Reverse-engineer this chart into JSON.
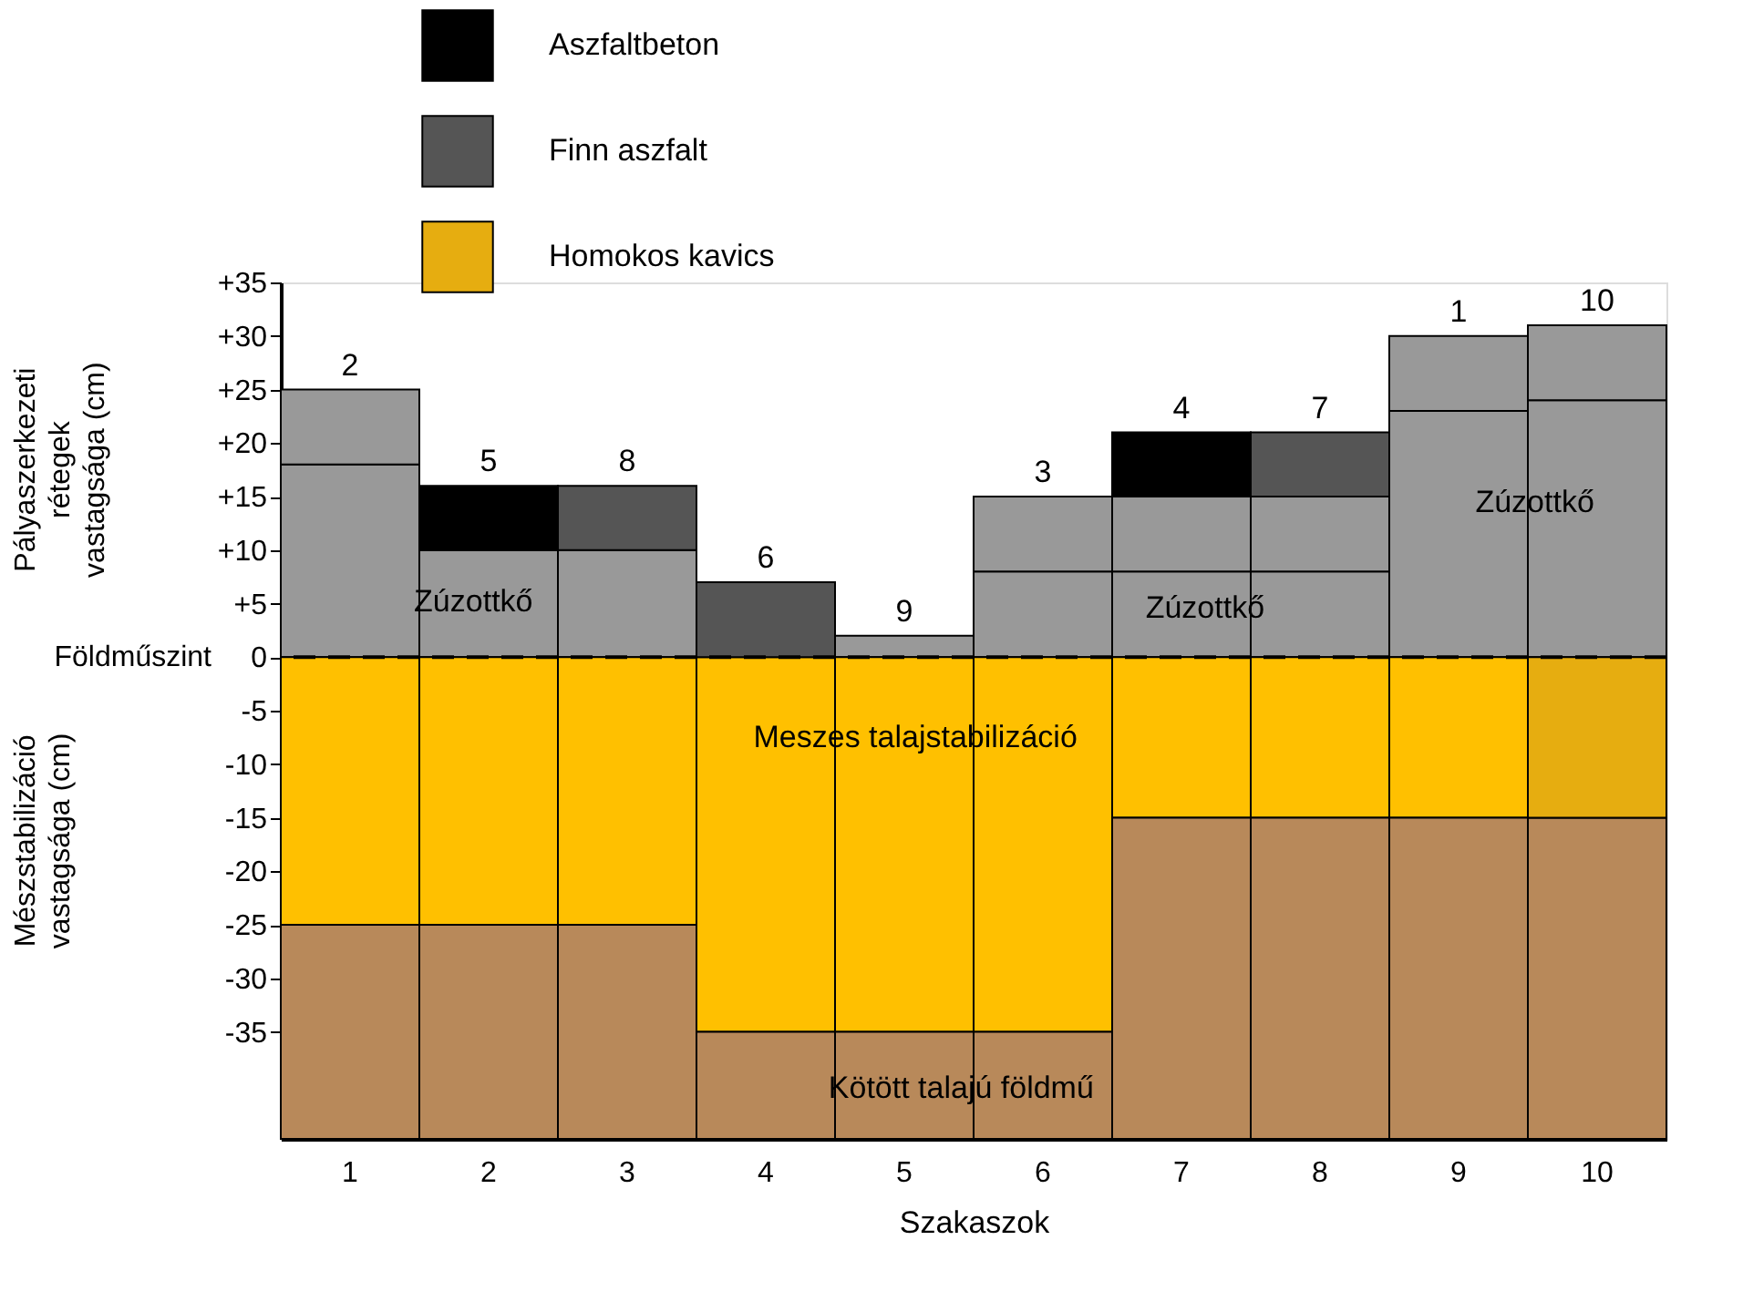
{
  "chart_data": {
    "type": "bar",
    "categories": [
      "1",
      "2",
      "3",
      "4",
      "5",
      "6",
      "7",
      "8",
      "9",
      "10"
    ],
    "xlabel": "Szakaszok",
    "ylabel": "Pályaszerkezeti rétegek vastagsága (cm)",
    "ylim": [
      -45,
      35
    ],
    "yticks": [
      {
        "value": 35,
        "label": "+35"
      },
      {
        "value": 30,
        "label": "+30"
      },
      {
        "value": 25,
        "label": "+25"
      },
      {
        "value": 20,
        "label": "+20"
      },
      {
        "value": 15,
        "label": "+15"
      },
      {
        "value": 10,
        "label": "+10"
      },
      {
        "value": 5,
        "label": "+5"
      },
      0,
      -5,
      -10,
      -15,
      -20,
      -25,
      -30,
      -35
    ],
    "grid": false,
    "legend": "top",
    "series": [
      {
        "color": "#999999",
        "values": [
          18,
          10,
          10,
          null,
          2,
          8,
          8,
          8,
          23,
          24
        ],
        "base": [
          0,
          0,
          0,
          null,
          0,
          0,
          0,
          0,
          0,
          0
        ]
      },
      {
        "color": "#999999",
        "values": [
          7,
          null,
          null,
          null,
          null,
          7,
          7,
          7,
          7,
          7
        ],
        "base": [
          18,
          null,
          null,
          null,
          null,
          8,
          8,
          8,
          23,
          24
        ]
      },
      {
        "name": "Aszfaltbeton",
        "color": "#000000",
        "values": [
          null,
          6,
          null,
          null,
          null,
          null,
          6,
          null,
          null,
          null
        ],
        "base": [
          null,
          10,
          null,
          null,
          null,
          null,
          15,
          null,
          null,
          null
        ]
      },
      {
        "name": "Finn aszfalt",
        "color": "#555555",
        "values": [
          null,
          null,
          6,
          7,
          null,
          null,
          null,
          6,
          null,
          null
        ],
        "base": [
          null,
          null,
          10,
          0,
          null,
          null,
          null,
          15,
          null,
          null
        ]
      },
      {
        "color": "#ffc000",
        "values": [
          -25,
          -25,
          -25,
          -35,
          -35,
          -35,
          -15,
          -15,
          -15,
          null
        ],
        "base": [
          0,
          0,
          0,
          0,
          0,
          0,
          0,
          0,
          0,
          null
        ]
      },
      {
        "name": "Homokos kavics",
        "color": "#e6ad10",
        "values": [
          null,
          null,
          null,
          null,
          null,
          null,
          null,
          null,
          null,
          -15
        ],
        "base": [
          null,
          null,
          null,
          null,
          null,
          null,
          null,
          null,
          null,
          0
        ]
      },
      {
        "color": "#b8895a",
        "values": [
          -20,
          -20,
          -20,
          -10,
          -10,
          -10,
          -30,
          -30,
          -30,
          -30
        ],
        "base": [
          -25,
          -25,
          -25,
          -35,
          -35,
          -35,
          -15,
          -15,
          -15,
          -15
        ]
      }
    ],
    "ref_lines": [
      {
        "axis": "y",
        "value": 0,
        "label": "Földműszint",
        "line_style": "dashed"
      }
    ],
    "annotations": [
      {
        "text": "2",
        "x": "1",
        "y": 25
      },
      {
        "text": "5",
        "x": "2",
        "y": 16
      },
      {
        "text": "8",
        "x": "3",
        "y": 16
      },
      {
        "text": "6",
        "x": "4",
        "y": 7
      },
      {
        "text": "9",
        "x": "5",
        "y": 2
      },
      {
        "text": "3",
        "x": "6",
        "y": 15
      },
      {
        "text": "4",
        "x": "7",
        "y": 21
      },
      {
        "text": "7",
        "x": "8",
        "y": 21
      },
      {
        "text": "1",
        "x": "9",
        "y": 30
      },
      {
        "text": "10",
        "x": "10",
        "y": 31
      },
      "Zúzottkő",
      "Zúzottkő",
      "Zúzottkő",
      "Meszes talajstabilizáció",
      "Kötött talajú földmű",
      "Mészstabilizáció vastagsága (cm)"
    ]
  }
}
